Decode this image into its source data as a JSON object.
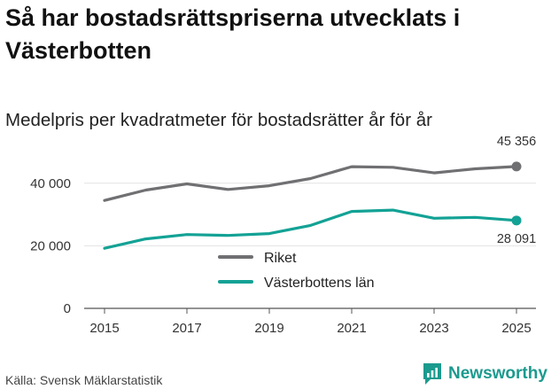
{
  "title": "Så har bostadsrättspriserna utvecklats i Västerbotten",
  "subtitle": "Medelpris per kvadratmeter för bostadsrätter år för år",
  "source": "Källa: Svensk Mäklarstatistik",
  "brand": {
    "name": "Newsworthy",
    "icon": "newsworthy-logo-icon",
    "color": "#1b9a8e"
  },
  "chart_data": {
    "type": "line",
    "title": "Så har bostadsrättspriserna utvecklats i Västerbotten",
    "subtitle": "Medelpris per kvadratmeter för bostadsrätter år för år",
    "xlabel": "",
    "ylabel": "",
    "x": [
      2015,
      2016,
      2017,
      2018,
      2019,
      2020,
      2021,
      2022,
      2023,
      2024,
      2025
    ],
    "x_ticks": [
      "2015",
      "2017",
      "2019",
      "2021",
      "2023",
      "2025"
    ],
    "y_ticks": [
      "0",
      "20 000",
      "40 000"
    ],
    "xlim": [
      2015,
      2025
    ],
    "ylim": [
      0,
      49000
    ],
    "grid": "horizontal",
    "legend_position": "center",
    "series": [
      {
        "name": "Riket",
        "color": "#707073",
        "values": [
          34500,
          37800,
          39800,
          38000,
          39200,
          41500,
          45300,
          45100,
          43300,
          44600,
          45356
        ],
        "end_label": "45 356"
      },
      {
        "name": "Västerbottens län",
        "color": "#13a295",
        "values": [
          19200,
          22200,
          23600,
          23300,
          23900,
          26500,
          31000,
          31400,
          28800,
          29100,
          28091
        ],
        "end_label": "28 091"
      }
    ]
  }
}
